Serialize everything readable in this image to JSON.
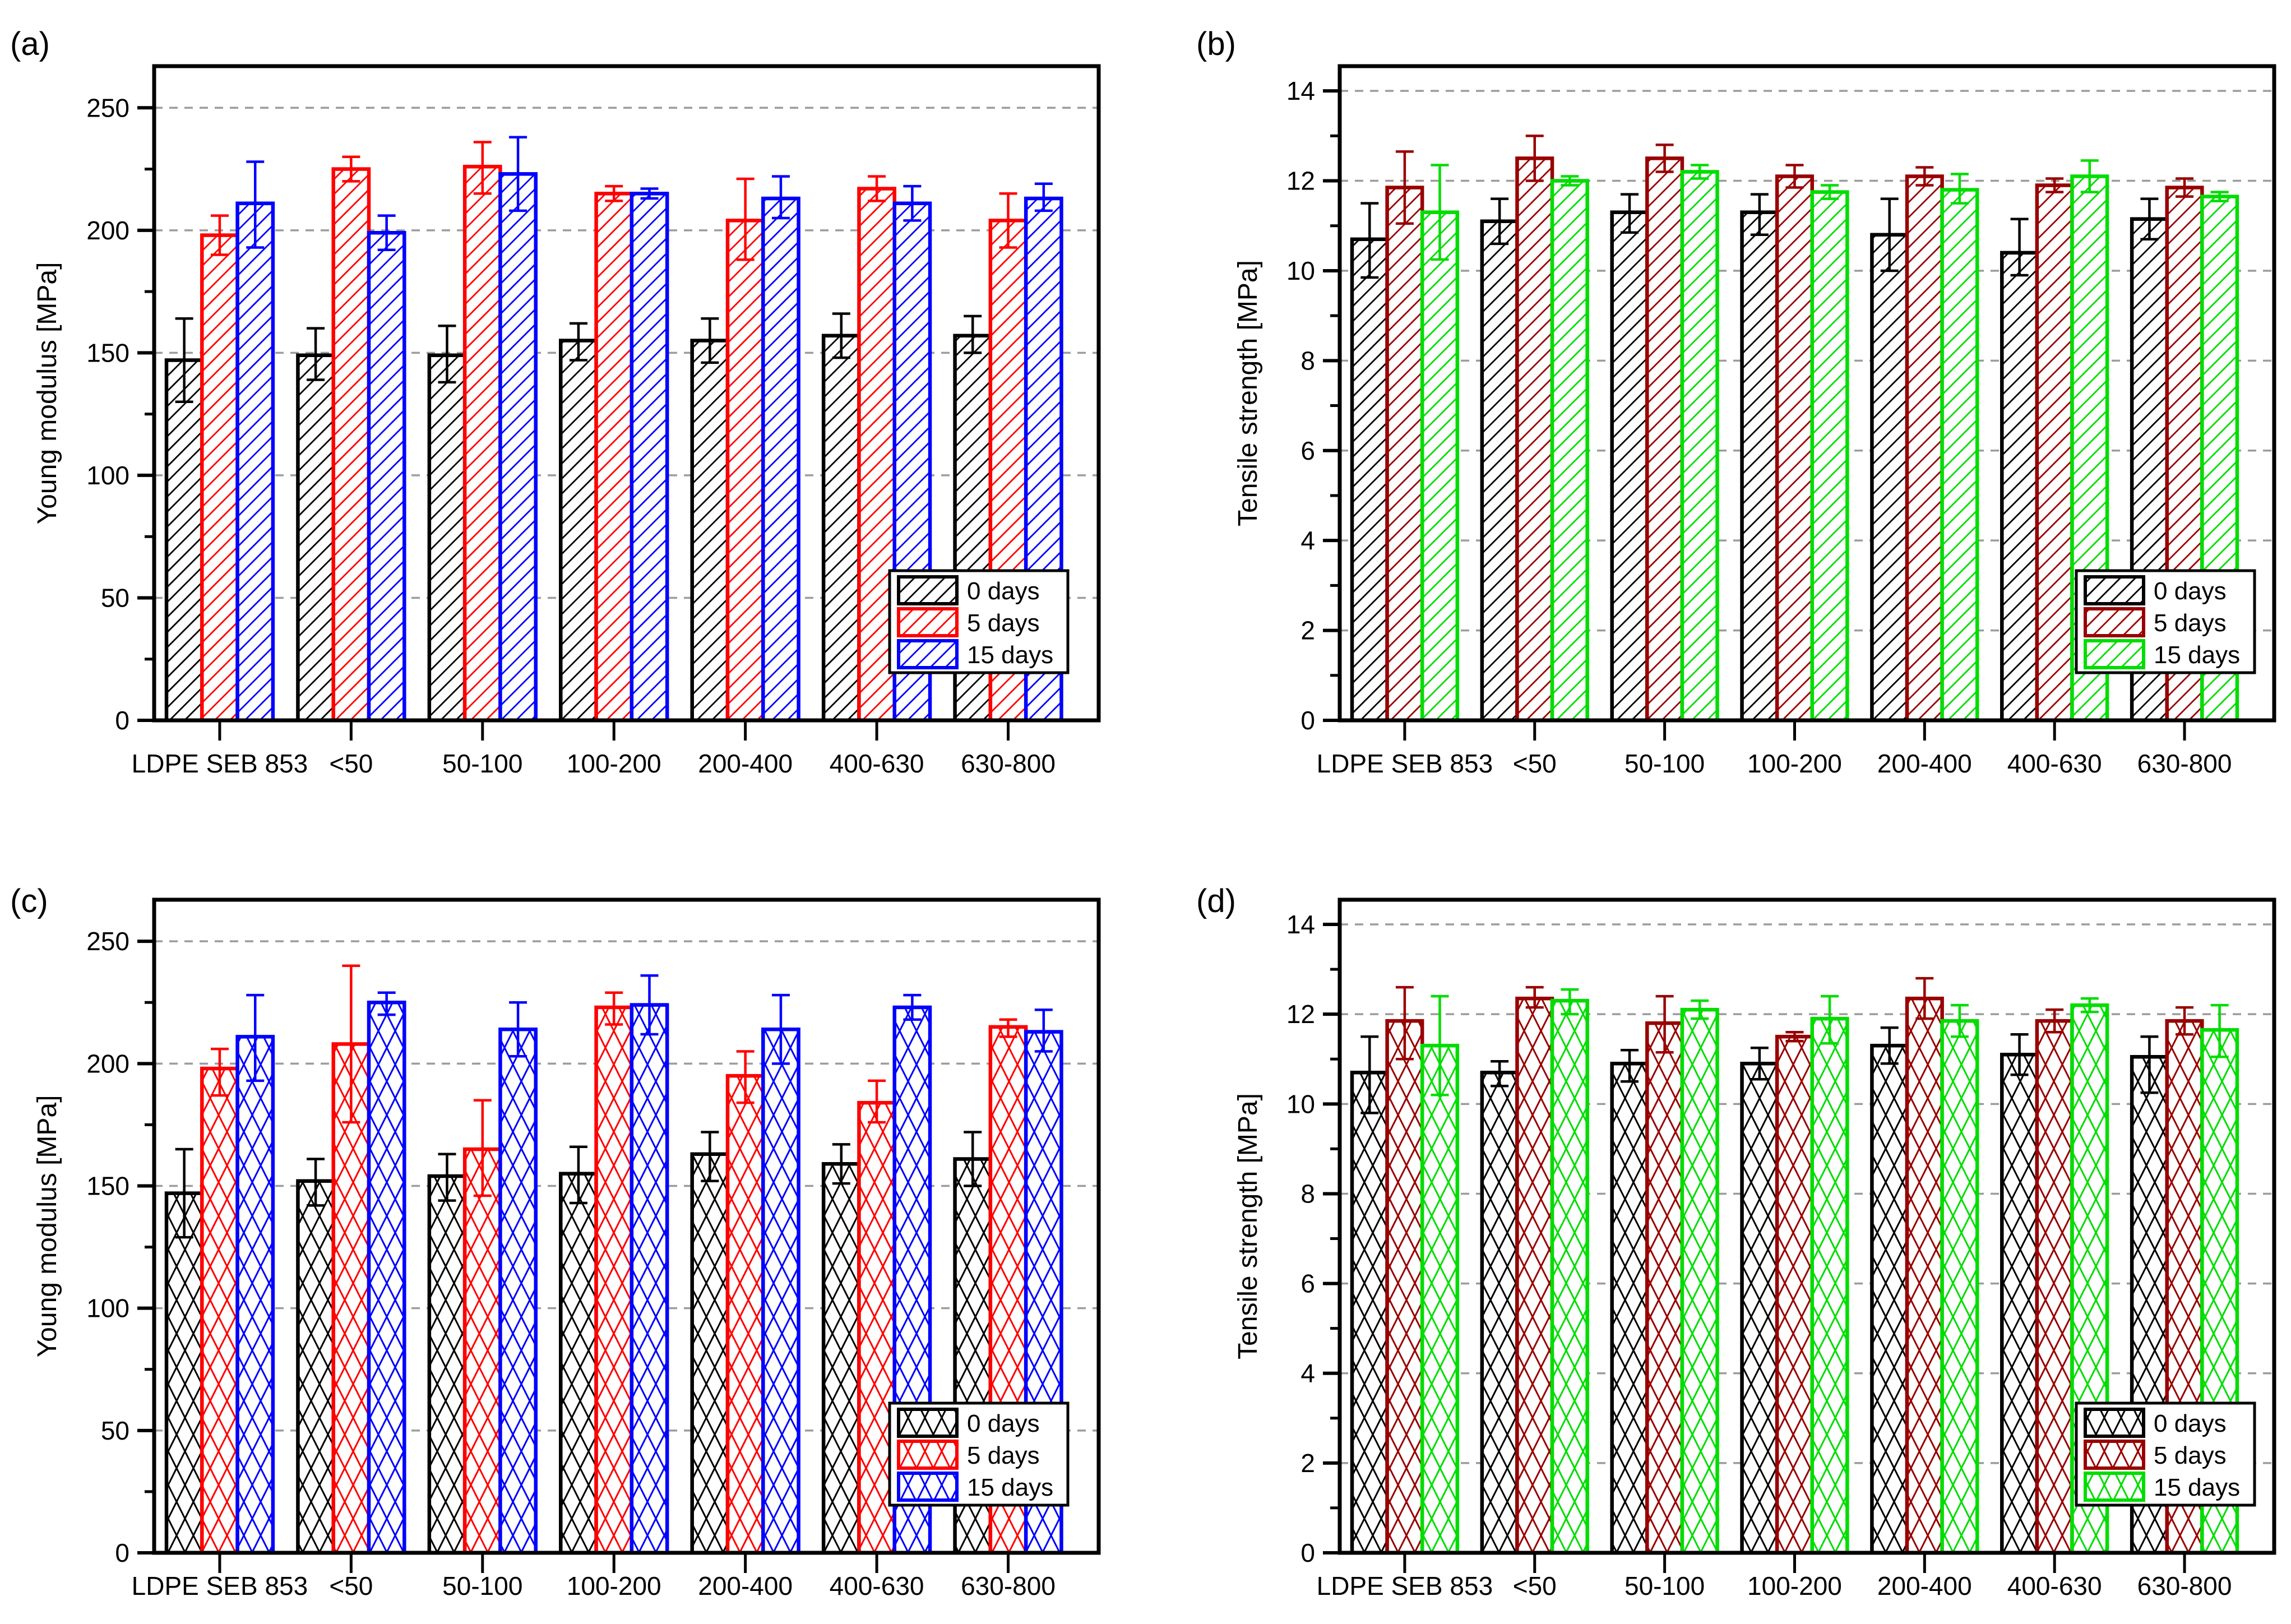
{
  "figure": {
    "background": "#ffffff"
  },
  "chart_data": [
    {
      "id": "a",
      "panel_label": "(a)",
      "type": "bar",
      "ylabel": "Young modulus [MPa]",
      "ylim": [
        0,
        267
      ],
      "yticks": [
        0,
        50,
        100,
        150,
        200,
        250
      ],
      "yticks_minor": [
        25,
        75,
        125,
        175,
        225
      ],
      "grid": "dashed-horizontal",
      "legend_position": "inside-right",
      "hatch": "diag",
      "row": 0,
      "col": 0,
      "categories": [
        "LDPE SEB 853",
        "<50",
        "50-100",
        "100-200",
        "200-400",
        "400-630",
        "630-800"
      ],
      "series": [
        {
          "name": "0 days",
          "color": "#000000",
          "values": [
            147,
            149,
            149,
            155,
            155,
            157,
            157
          ],
          "err_low": [
            130,
            139,
            138,
            147,
            146,
            148,
            150
          ],
          "err_high": [
            164,
            160,
            161,
            162,
            164,
            166,
            165
          ]
        },
        {
          "name": "5 days",
          "color": "#FF0000",
          "values": [
            198,
            225,
            226,
            215,
            204,
            217,
            204
          ],
          "err_low": [
            190,
            220,
            215,
            212,
            188,
            212,
            193
          ],
          "err_high": [
            206,
            230,
            236,
            218,
            221,
            222,
            215
          ]
        },
        {
          "name": "15 days",
          "color": "#0000FF",
          "values": [
            211,
            199,
            223,
            215,
            213,
            211,
            213
          ],
          "err_low": [
            193,
            192,
            208,
            213,
            205,
            204,
            208
          ],
          "err_high": [
            228,
            206,
            238,
            217,
            222,
            218,
            219
          ]
        }
      ]
    },
    {
      "id": "b",
      "panel_label": "(b)",
      "type": "bar",
      "ylabel": "Tensile strength [MPa]",
      "ylim": [
        0,
        14.55
      ],
      "yticks": [
        0,
        2,
        4,
        6,
        8,
        10,
        12,
        14
      ],
      "yticks_minor": [
        1,
        3,
        5,
        7,
        9,
        11,
        13
      ],
      "grid": "dashed-horizontal",
      "legend_position": "inside-right",
      "hatch": "diag",
      "row": 0,
      "col": 1,
      "categories": [
        "LDPE SEB 853",
        "<50",
        "50-100",
        "100-200",
        "200-400",
        "400-630",
        "630-800"
      ],
      "series": [
        {
          "name": "0 days",
          "color": "#000000",
          "values": [
            10.7,
            11.1,
            11.3,
            11.3,
            10.8,
            10.4,
            11.15
          ],
          "err_low": [
            9.85,
            10.6,
            10.85,
            10.8,
            10.0,
            9.9,
            10.7
          ],
          "err_high": [
            11.5,
            11.6,
            11.7,
            11.7,
            11.6,
            11.15,
            11.6
          ]
        },
        {
          "name": "5 days",
          "color": "#990000",
          "values": [
            11.85,
            12.5,
            12.5,
            12.1,
            12.1,
            11.9,
            11.85
          ],
          "err_low": [
            11.05,
            12.0,
            12.2,
            11.85,
            11.9,
            11.75,
            11.65
          ],
          "err_high": [
            12.65,
            13.0,
            12.8,
            12.35,
            12.3,
            12.05,
            12.05
          ]
        },
        {
          "name": "15 days",
          "color": "#00DD00",
          "values": [
            11.3,
            12.0,
            12.2,
            11.75,
            11.8,
            12.1,
            11.65
          ],
          "err_low": [
            10.25,
            11.9,
            12.05,
            11.6,
            11.5,
            11.75,
            11.55
          ],
          "err_high": [
            12.35,
            12.1,
            12.35,
            11.9,
            12.15,
            12.45,
            11.75
          ]
        }
      ]
    },
    {
      "id": "c",
      "panel_label": "(c)",
      "type": "bar",
      "ylabel": "Young modulus [MPa]",
      "ylim": [
        0,
        267
      ],
      "yticks": [
        0,
        50,
        100,
        150,
        200,
        250
      ],
      "yticks_minor": [
        25,
        75,
        125,
        175,
        225
      ],
      "grid": "dashed-horizontal",
      "legend_position": "inside-right",
      "hatch": "cross",
      "row": 1,
      "col": 0,
      "categories": [
        "LDPE SEB 853",
        "<50",
        "50-100",
        "100-200",
        "200-400",
        "400-630",
        "630-800"
      ],
      "series": [
        {
          "name": "0 days",
          "color": "#000000",
          "values": [
            147,
            152,
            154,
            155,
            163,
            159,
            161
          ],
          "err_low": [
            129,
            142,
            144,
            143,
            152,
            151,
            150
          ],
          "err_high": [
            165,
            161,
            163,
            166,
            172,
            167,
            172
          ]
        },
        {
          "name": "5 days",
          "color": "#FF0000",
          "values": [
            198,
            208,
            165,
            223,
            195,
            184,
            215
          ],
          "err_low": [
            187,
            176,
            146,
            216,
            184,
            176,
            211
          ],
          "err_high": [
            206,
            240,
            185,
            229,
            205,
            193,
            218
          ]
        },
        {
          "name": "15 days",
          "color": "#0000FF",
          "values": [
            211,
            225,
            214,
            224,
            214,
            223,
            213
          ],
          "err_low": [
            193,
            220,
            203,
            212,
            200,
            218,
            205
          ],
          "err_high": [
            228,
            229,
            225,
            236,
            228,
            228,
            222
          ]
        }
      ]
    },
    {
      "id": "d",
      "panel_label": "(d)",
      "type": "bar",
      "ylabel": "Tensile strength [MPa]",
      "ylim": [
        0,
        14.55
      ],
      "yticks": [
        0,
        2,
        4,
        6,
        8,
        10,
        12,
        14
      ],
      "yticks_minor": [
        1,
        3,
        5,
        7,
        9,
        11,
        13
      ],
      "grid": "dashed-horizontal",
      "legend_position": "inside-right",
      "hatch": "cross",
      "row": 1,
      "col": 1,
      "categories": [
        "LDPE SEB 853",
        "<50",
        "50-100",
        "100-200",
        "200-400",
        "400-630",
        "630-800"
      ],
      "series": [
        {
          "name": "0 days",
          "color": "#000000",
          "values": [
            10.7,
            10.7,
            10.9,
            10.9,
            11.3,
            11.1,
            11.05
          ],
          "err_low": [
            9.8,
            10.4,
            10.5,
            10.55,
            10.9,
            10.65,
            10.25
          ],
          "err_high": [
            11.5,
            10.95,
            11.2,
            11.25,
            11.7,
            11.55,
            11.5
          ]
        },
        {
          "name": "5 days",
          "color": "#990000",
          "values": [
            11.85,
            12.35,
            11.8,
            11.5,
            12.35,
            11.85,
            11.85
          ],
          "err_low": [
            11.0,
            12.15,
            11.15,
            11.4,
            11.9,
            11.6,
            11.55
          ],
          "err_high": [
            12.6,
            12.6,
            12.4,
            11.6,
            12.8,
            12.1,
            12.15
          ]
        },
        {
          "name": "15 days",
          "color": "#00DD00",
          "values": [
            11.3,
            12.3,
            12.1,
            11.9,
            11.85,
            12.2,
            11.65
          ],
          "err_low": [
            10.2,
            12.0,
            11.9,
            11.35,
            11.5,
            12.05,
            11.05
          ],
          "err_high": [
            12.4,
            12.55,
            12.3,
            12.4,
            12.2,
            12.35,
            12.2
          ]
        }
      ]
    }
  ]
}
